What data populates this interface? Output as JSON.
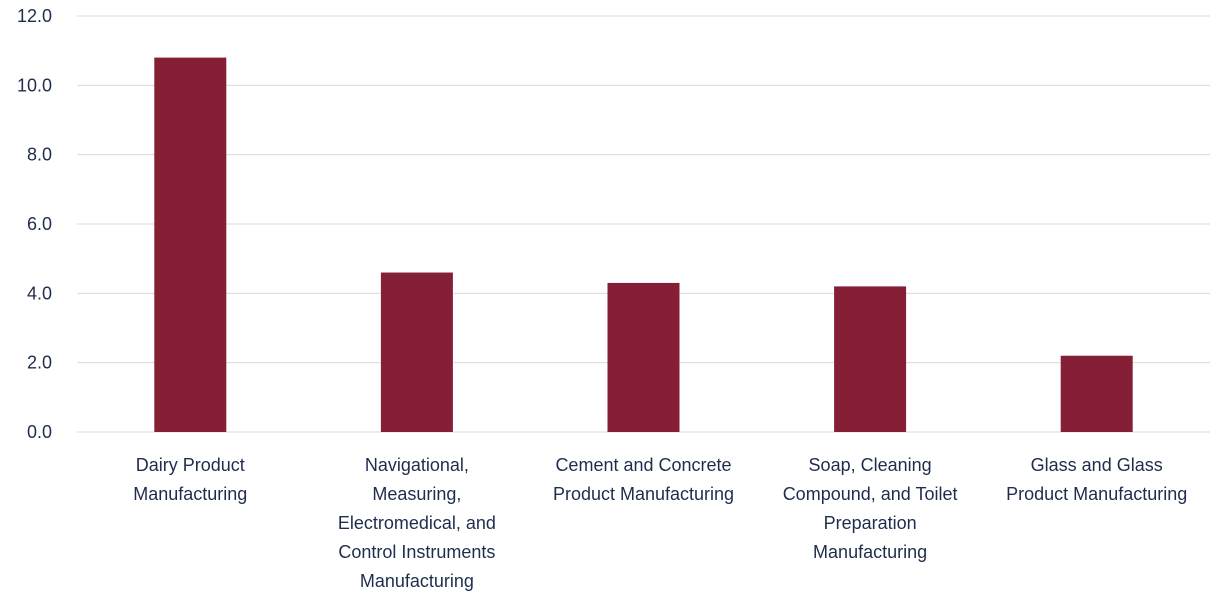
{
  "chart_data": {
    "type": "bar",
    "title": "",
    "xlabel": "",
    "ylabel": "",
    "ylim": [
      0,
      12
    ],
    "y_ticks": [
      "0.0",
      "2.0",
      "4.0",
      "6.0",
      "8.0",
      "10.0",
      "12.0"
    ],
    "y_tick_values": [
      0,
      2,
      4,
      6,
      8,
      10,
      12
    ],
    "grid": true,
    "legend": "none",
    "bar_color": "#841f35",
    "categories": [
      [
        "Dairy Product",
        "Manufacturing"
      ],
      [
        "Navigational,",
        "Measuring,",
        "Electromedical, and",
        "Control Instruments",
        "Manufacturing"
      ],
      [
        "Cement and Concrete",
        "Product Manufacturing"
      ],
      [
        "Soap, Cleaning",
        "Compound, and Toilet",
        "Preparation",
        "Manufacturing"
      ],
      [
        "Glass and Glass",
        "Product Manufacturing"
      ]
    ],
    "values": [
      10.8,
      4.6,
      4.3,
      4.2,
      2.2
    ]
  }
}
